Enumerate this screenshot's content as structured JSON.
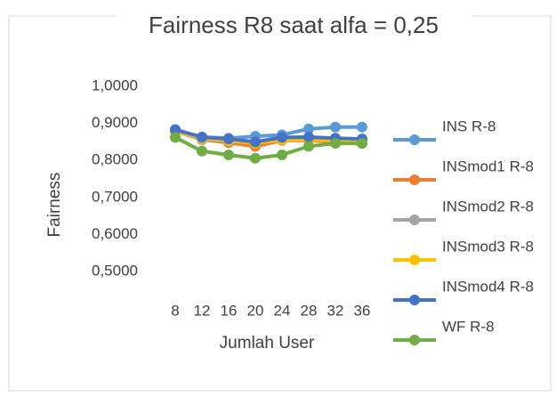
{
  "chart_data": {
    "type": "line",
    "title": "Fairness R8 saat alfa = 0,25",
    "x_label": "Jumlah User",
    "y_label": "Fairness",
    "categories": [
      8,
      12,
      16,
      20,
      24,
      28,
      32,
      36
    ],
    "ylim": [
      0.5,
      1.0
    ],
    "yticks": [
      {
        "value": 0.5,
        "label": "0,5000"
      },
      {
        "value": 0.6,
        "label": "0,6000"
      },
      {
        "value": 0.7,
        "label": "0,7000"
      },
      {
        "value": 0.8,
        "label": "0,8000"
      },
      {
        "value": 0.9,
        "label": "0,9000"
      },
      {
        "value": 1.0,
        "label": "1,0000"
      }
    ],
    "legend": "right",
    "series": [
      {
        "name": "INS R-8",
        "color": "#5b9bd5",
        "values": [
          0.883,
          0.863,
          0.86,
          0.865,
          0.869,
          0.885,
          0.89,
          0.89
        ]
      },
      {
        "name": "INSmod1 R-8",
        "color": "#ed7d31",
        "values": [
          0.879,
          0.856,
          0.848,
          0.838,
          0.854,
          0.854,
          0.85,
          0.846
        ]
      },
      {
        "name": "INSmod2 R-8",
        "color": "#a5a5a5",
        "values": [
          0.879,
          0.858,
          0.852,
          0.848,
          0.858,
          0.858,
          0.856,
          0.854
        ]
      },
      {
        "name": "INSmod3 R-8",
        "color": "#ffc000",
        "values": [
          0.879,
          0.86,
          0.854,
          0.846,
          0.856,
          0.856,
          0.854,
          0.852
        ]
      },
      {
        "name": "INSmod4 R-8",
        "color": "#4472c4",
        "values": [
          0.883,
          0.863,
          0.858,
          0.85,
          0.862,
          0.863,
          0.86,
          0.858
        ]
      },
      {
        "name": "WF R-8",
        "color": "#70ad47",
        "values": [
          0.862,
          0.825,
          0.815,
          0.806,
          0.815,
          0.838,
          0.846,
          0.846
        ]
      }
    ]
  }
}
